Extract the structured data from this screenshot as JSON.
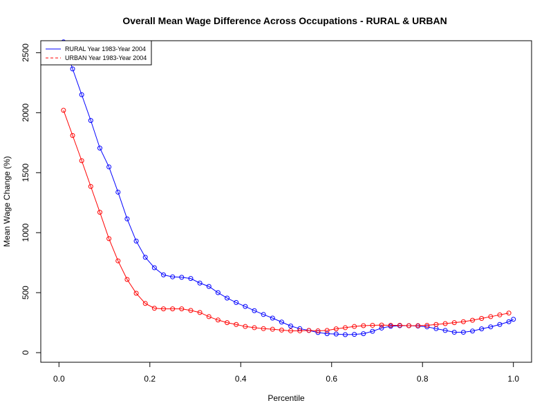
{
  "chart_data": {
    "type": "line",
    "title": "Overall Mean Wage Difference Across Occupations - RURAL & URBAN",
    "xlabel": "Percentile",
    "ylabel": "Mean Wage Change (%)",
    "xlim": [
      -0.04,
      1.04
    ],
    "ylim": [
      -80,
      2600
    ],
    "xticks": [
      0.0,
      0.2,
      0.4,
      0.6,
      0.8,
      1.0
    ],
    "xtick_labels": [
      "0.0",
      "0.2",
      "0.4",
      "0.6",
      "0.8",
      "1.0"
    ],
    "yticks": [
      0,
      500,
      1000,
      1500,
      2000,
      2500
    ],
    "ytick_labels": [
      "0",
      "500",
      "1000",
      "1500",
      "2000",
      "2500"
    ],
    "grid": false,
    "legend_position": "top-left",
    "series": [
      {
        "name": "RURAL Year 1983-Year 2004",
        "color": "#0000ff",
        "line_style": "solid",
        "marker": "open-circle",
        "x": [
          0.01,
          0.03,
          0.05,
          0.07,
          0.09,
          0.11,
          0.13,
          0.15,
          0.17,
          0.19,
          0.21,
          0.23,
          0.25,
          0.27,
          0.29,
          0.31,
          0.33,
          0.35,
          0.37,
          0.39,
          0.41,
          0.43,
          0.45,
          0.47,
          0.49,
          0.51,
          0.53,
          0.55,
          0.57,
          0.59,
          0.61,
          0.63,
          0.65,
          0.67,
          0.69,
          0.71,
          0.73,
          0.75,
          0.77,
          0.79,
          0.81,
          0.83,
          0.85,
          0.87,
          0.89,
          0.91,
          0.93,
          0.95,
          0.97,
          0.99,
          1.0
        ],
        "y": [
          2590,
          2365,
          2150,
          1935,
          1705,
          1548,
          1338,
          1115,
          930,
          795,
          708,
          648,
          632,
          628,
          618,
          580,
          552,
          500,
          455,
          418,
          385,
          350,
          318,
          288,
          255,
          222,
          200,
          185,
          168,
          158,
          155,
          150,
          152,
          158,
          178,
          205,
          220,
          225,
          225,
          222,
          215,
          200,
          185,
          170,
          170,
          180,
          198,
          215,
          235,
          258,
          278
        ]
      },
      {
        "name": "URBAN Year 1983-Year 2004",
        "color": "#ff0000",
        "line_style": "dashed",
        "marker": "open-circle",
        "x": [
          0.01,
          0.03,
          0.05,
          0.07,
          0.09,
          0.11,
          0.13,
          0.15,
          0.17,
          0.19,
          0.21,
          0.23,
          0.25,
          0.27,
          0.29,
          0.31,
          0.33,
          0.35,
          0.37,
          0.39,
          0.41,
          0.43,
          0.45,
          0.47,
          0.49,
          0.51,
          0.53,
          0.55,
          0.57,
          0.59,
          0.61,
          0.63,
          0.65,
          0.67,
          0.69,
          0.71,
          0.73,
          0.75,
          0.77,
          0.79,
          0.81,
          0.83,
          0.85,
          0.87,
          0.89,
          0.91,
          0.93,
          0.95,
          0.97,
          0.99
        ],
        "y": [
          2020,
          1810,
          1600,
          1385,
          1170,
          950,
          765,
          610,
          495,
          410,
          370,
          365,
          365,
          365,
          352,
          335,
          300,
          272,
          250,
          235,
          218,
          208,
          200,
          195,
          188,
          182,
          182,
          185,
          182,
          185,
          198,
          208,
          218,
          225,
          228,
          230,
          228,
          228,
          225,
          225,
          228,
          235,
          242,
          250,
          258,
          270,
          285,
          300,
          315,
          330
        ]
      }
    ]
  }
}
